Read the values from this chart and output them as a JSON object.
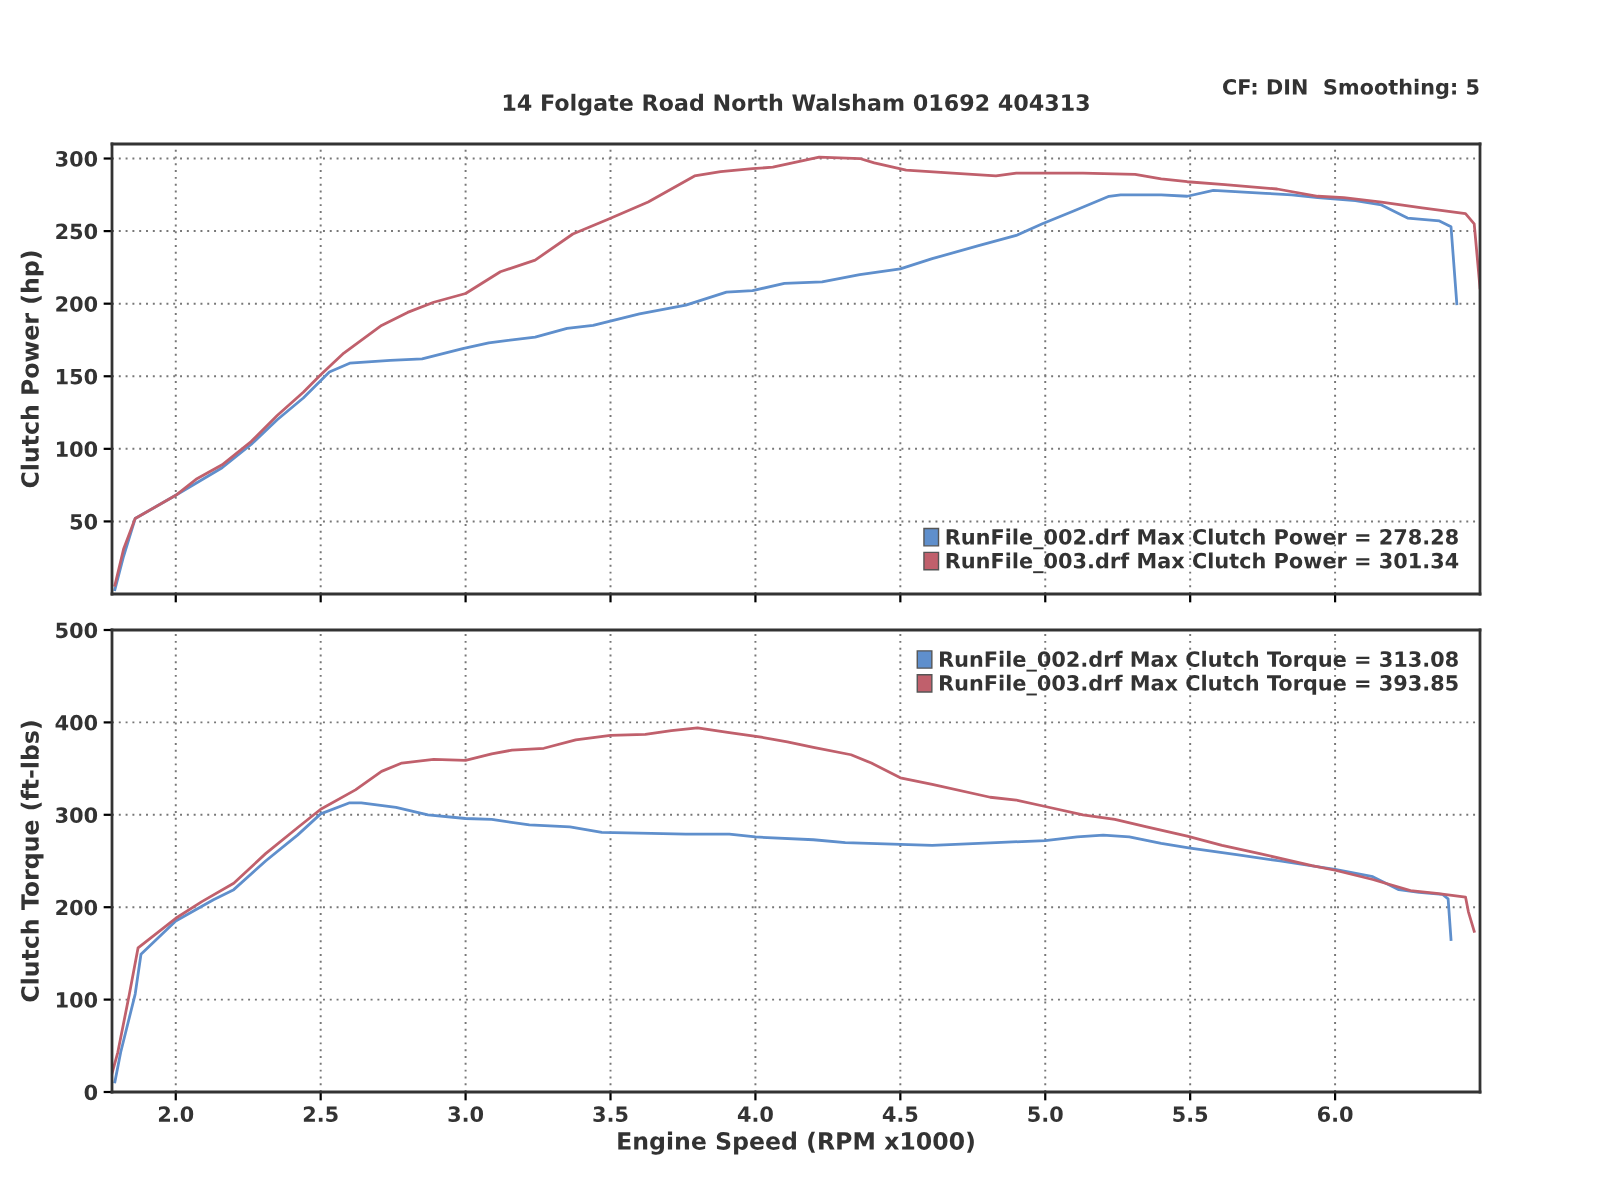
{
  "chart_data": [
    {
      "type": "line",
      "title": "14 Folgate Road North Walsham 01692 404313",
      "annotations": [
        "CF: DIN  Smoothing: 5"
      ],
      "ylabel": "Clutch Power (hp)",
      "xlim": [
        1.78,
        6.5
      ],
      "xticks": [
        2,
        2.5,
        3,
        3.5,
        4,
        4.5,
        5,
        5.5,
        6
      ],
      "ylim": [
        0,
        310
      ],
      "yticks": [
        50,
        100,
        150,
        200,
        250,
        300
      ],
      "tick_labels": "y",
      "grid": true,
      "legend": "bottom right",
      "series": [
        {
          "name": "RunFile_002.drf Max Clutch Power = 278.28",
          "color": "#5f8fcc",
          "x": [
            1.79,
            1.82,
            1.86,
            2.0,
            2.16,
            2.26,
            2.35,
            2.44,
            2.53,
            2.6,
            2.74,
            2.85,
            2.99,
            3.08,
            3.24,
            3.35,
            3.44,
            3.6,
            3.76,
            3.9,
            3.99,
            4.1,
            4.23,
            4.36,
            4.5,
            4.61,
            4.77,
            4.9,
            4.99,
            5.1,
            5.22,
            5.26,
            5.4,
            5.49,
            5.58,
            5.76,
            5.85,
            5.94,
            6.07,
            6.16,
            6.25,
            6.36,
            6.4,
            6.42
          ],
          "values": [
            3,
            26,
            52,
            68,
            87,
            103,
            120,
            135,
            153,
            159,
            161,
            162,
            169,
            173,
            177,
            183,
            185,
            193,
            199,
            208,
            209,
            214,
            215,
            220,
            224,
            231,
            240,
            247,
            255,
            264,
            274,
            275,
            275,
            274,
            278,
            276,
            275,
            273,
            271,
            268,
            259,
            257,
            253,
            200
          ]
        },
        {
          "name": "RunFile_003.drf Max Clutch Power = 301.34",
          "color": "#c0606c",
          "x": [
            1.79,
            1.82,
            1.86,
            2.0,
            2.07,
            2.16,
            2.26,
            2.35,
            2.44,
            2.5,
            2.58,
            2.71,
            2.8,
            2.89,
            3.0,
            3.12,
            3.24,
            3.37,
            3.49,
            3.63,
            3.79,
            3.88,
            3.99,
            4.06,
            4.22,
            4.36,
            4.41,
            4.52,
            4.68,
            4.83,
            4.9,
            5.13,
            5.31,
            5.4,
            5.49,
            5.62,
            5.8,
            5.94,
            6.03,
            6.16,
            6.3,
            6.45,
            6.48,
            6.5
          ],
          "values": [
            6,
            31,
            52,
            68,
            79,
            89,
            105,
            123,
            139,
            151,
            166,
            185,
            194,
            201,
            207,
            222,
            230,
            248,
            258,
            270,
            288,
            291,
            293,
            294,
            301,
            300,
            297,
            292,
            290,
            288,
            290,
            290,
            289,
            286,
            284,
            282,
            279,
            274,
            273,
            270,
            266,
            262,
            255,
            211
          ]
        }
      ]
    },
    {
      "type": "line",
      "xlabel": "Engine Speed (RPM x1000)",
      "ylabel": "Clutch Torque (ft-lbs)",
      "xlim": [
        1.78,
        6.5
      ],
      "xticks": [
        {
          "value": 2,
          "label": "2.0"
        },
        2.5,
        {
          "value": 3,
          "label": "3.0"
        },
        3.5,
        {
          "value": 4,
          "label": "4.0"
        },
        4.5,
        {
          "value": 5,
          "label": "5.0"
        },
        5.5,
        {
          "value": 6,
          "label": "6.0"
        }
      ],
      "ylim": [
        0,
        500
      ],
      "yticks": [
        0,
        100,
        200,
        300,
        400,
        500
      ],
      "grid": true,
      "legend": "top right",
      "series": [
        {
          "name": "RunFile_002.drf Max Clutch Torque = 313.08",
          "color": "#5f8fcc",
          "x": [
            1.79,
            1.81,
            1.86,
            1.88,
            2.0,
            2.13,
            2.2,
            2.31,
            2.42,
            2.5,
            2.6,
            2.64,
            2.76,
            2.87,
            3.0,
            3.09,
            3.22,
            3.36,
            3.47,
            3.64,
            3.76,
            3.91,
            4.0,
            4.2,
            4.31,
            4.5,
            4.61,
            4.83,
            5.0,
            5.11,
            5.2,
            5.29,
            5.4,
            5.5,
            5.66,
            5.81,
            6.0,
            6.13,
            6.22,
            6.29,
            6.37,
            6.39,
            6.4
          ],
          "values": [
            11,
            43,
            106,
            149,
            185,
            208,
            219,
            250,
            278,
            301,
            313,
            313,
            308,
            300,
            296,
            295,
            289,
            287,
            281,
            280,
            279,
            279,
            276,
            273,
            270,
            268,
            267,
            270,
            272,
            276,
            278,
            276,
            269,
            264,
            257,
            250,
            241,
            233,
            219,
            216,
            214,
            209,
            165
          ]
        },
        {
          "name": "RunFile_003.drf Max Clutch Torque = 393.85",
          "color": "#c0606c",
          "x": [
            1.78,
            1.8,
            1.84,
            1.87,
            2.0,
            2.09,
            2.2,
            2.31,
            2.42,
            2.5,
            2.62,
            2.71,
            2.78,
            2.89,
            3.0,
            3.09,
            3.16,
            3.27,
            3.38,
            3.5,
            3.62,
            3.71,
            3.8,
            3.91,
            4.02,
            4.11,
            4.2,
            4.33,
            4.4,
            4.5,
            4.61,
            4.81,
            4.9,
            5.0,
            5.13,
            5.24,
            5.35,
            5.49,
            5.61,
            5.74,
            5.92,
            6.0,
            6.13,
            6.26,
            6.35,
            6.45,
            6.46,
            6.48
          ],
          "values": [
            20,
            43,
            106,
            156,
            188,
            206,
            226,
            258,
            286,
            306,
            327,
            347,
            356,
            360,
            359,
            366,
            370,
            372,
            381,
            386,
            387,
            391,
            394,
            389,
            384,
            379,
            373,
            365,
            356,
            340,
            333,
            319,
            316,
            309,
            300,
            295,
            287,
            277,
            267,
            258,
            245,
            240,
            230,
            218,
            215,
            211,
            195,
            174
          ]
        }
      ]
    }
  ]
}
